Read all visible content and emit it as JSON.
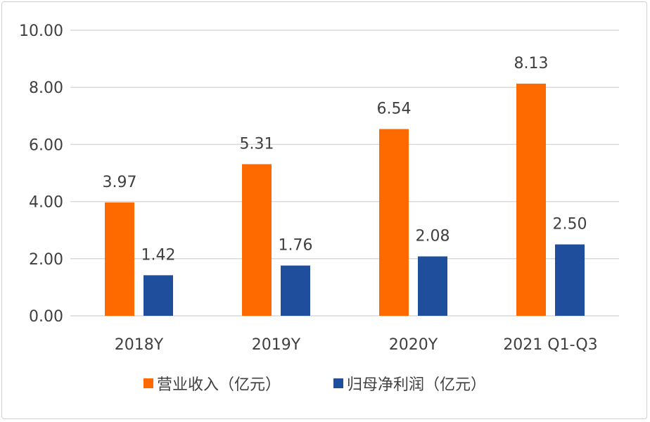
{
  "chart_data": {
    "type": "bar",
    "title": "",
    "xlabel": "",
    "ylabel": "",
    "categories": [
      "2018Y",
      "2019Y",
      "2020Y",
      "2021 Q1-Q3"
    ],
    "series": [
      {
        "name": "营业收入（亿元）",
        "color": "#ff6a00",
        "values": [
          3.97,
          5.31,
          6.54,
          8.13
        ],
        "labels": [
          "3.97",
          "5.31",
          "6.54",
          "8.13"
        ]
      },
      {
        "name": "归母净利润（亿元）",
        "color": "#1f4e9c",
        "values": [
          1.42,
          1.76,
          2.08,
          2.5
        ],
        "labels": [
          "1.42",
          "1.76",
          "2.08",
          "2.50"
        ]
      }
    ],
    "ylim": [
      0,
      10
    ],
    "yticks": [
      "0.00",
      "2.00",
      "4.00",
      "6.00",
      "8.00",
      "10.00"
    ],
    "grid": true,
    "legend": "bottom"
  }
}
